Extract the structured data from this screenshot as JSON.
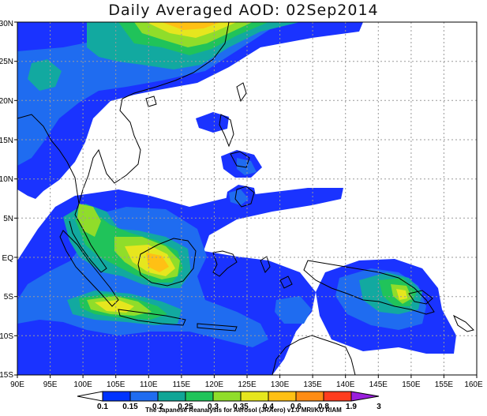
{
  "title": "Daily Averaged AOD: 02Sep2014",
  "credit": "The Japanese Reanalysis for Aerosol (JRAero) v1.0 MRI/KU RIAM",
  "map": {
    "lon_range": [
      90,
      160
    ],
    "lat_range": [
      -15,
      30
    ],
    "grid": "dotted",
    "lon_ticks": [
      "90E",
      "95E",
      "100E",
      "105E",
      "110E",
      "115E",
      "120E",
      "125E",
      "130E",
      "135E",
      "140E",
      "145E",
      "150E",
      "155E",
      "160E"
    ],
    "lat_ticks": [
      "30N",
      "25N",
      "20N",
      "15N",
      "10N",
      "5N",
      "EQ",
      "5S",
      "10S",
      "15S"
    ]
  },
  "colorbar": {
    "labels": [
      "0.1",
      "0.15",
      "0.2",
      "0.25",
      "0.3",
      "0.35",
      "0.4",
      "0.6",
      "0.8",
      "1.9",
      "3"
    ],
    "colors": [
      "#ffffff",
      "#0033ff",
      "#1f6cf0",
      "#10a596",
      "#20c45a",
      "#90dd2a",
      "#e6e61e",
      "#ffc014",
      "#ff8c14",
      "#ff3c1e",
      "#9a1edc"
    ]
  },
  "layers": {
    "aod_band_colors": {
      "0.1-0.15": "#1a33ff",
      "0.15-0.2": "#1f6cf0",
      "0.2-0.25": "#12a9a0",
      "0.25-0.3": "#20c35a",
      "0.3-0.35": "#90dd2a",
      "0.35-0.4": "#e6e61e",
      "0.4-0.6": "#ffc014"
    }
  }
}
